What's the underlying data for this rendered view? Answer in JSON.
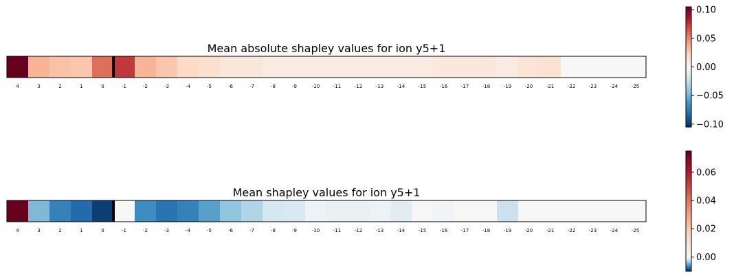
{
  "chart_data": [
    {
      "type": "heatmap",
      "title": "Mean absolute shapley values for ion y5+1",
      "colormap": "RdBu_r",
      "vlim": [
        -0.105,
        0.105
      ],
      "separator_after_index": 4,
      "x_tick_labels": [
        "4",
        "3",
        "2",
        "1",
        "0",
        "-1",
        "-2",
        "-3",
        "-4",
        "-5",
        "-6",
        "-7",
        "-8",
        "-9",
        "-10",
        "-11",
        "-12",
        "-13",
        "-14",
        "-15",
        "-16",
        "-17",
        "-18",
        "-19",
        "-20",
        "-21",
        "-22",
        "-23",
        "-24",
        "-25"
      ],
      "values": [
        0.105,
        0.036,
        0.031,
        0.029,
        0.058,
        0.075,
        0.036,
        0.029,
        0.021,
        0.018,
        0.012,
        0.012,
        0.009,
        0.009,
        0.009,
        0.009,
        0.009,
        0.009,
        0.009,
        0.009,
        0.011,
        0.011,
        0.011,
        0.009,
        0.014,
        0.016,
        0.0,
        0.0,
        0.0,
        0.0
      ],
      "colorbar": {
        "ticks": [
          "0.10",
          "0.05",
          "0.00",
          "−0.05",
          "−0.10"
        ],
        "tick_values": [
          0.1,
          0.05,
          0.0,
          -0.05,
          -0.1
        ],
        "range": [
          -0.105,
          0.105
        ]
      }
    },
    {
      "type": "heatmap",
      "title": "Mean shapley values for ion y5+1",
      "colormap": "RdBu_r",
      "vlim": [
        -0.01,
        0.075
      ],
      "separator_after_index": 4,
      "x_tick_labels": [
        "4",
        "3",
        "2",
        "1",
        "0",
        "-1",
        "-2",
        "-3",
        "-4",
        "-5",
        "-6",
        "-7",
        "-8",
        "-9",
        "-10",
        "-11",
        "-12",
        "-13",
        "-14",
        "-15",
        "-16",
        "-17",
        "-18",
        "-19",
        "-20",
        "-21",
        "-22",
        "-23",
        "-24",
        "-25"
      ],
      "values": [
        0.075,
        -0.0045,
        -0.0068,
        -0.0078,
        -0.0095,
        0.0,
        -0.0063,
        -0.0074,
        -0.0068,
        -0.0055,
        -0.004,
        -0.003,
        -0.0018,
        -0.0016,
        -0.0006,
        -0.0008,
        -0.0008,
        -0.0006,
        -0.0011,
        0.0004,
        -0.0003,
        0.0007,
        0.0003,
        -0.0022,
        0.0,
        0.0,
        0.0,
        0.0,
        0.0,
        0.0
      ],
      "colorbar": {
        "ticks": [
          "0.06",
          "0.04",
          "0.02",
          "0.00"
        ],
        "tick_values": [
          0.06,
          0.04,
          0.02,
          0.0
        ],
        "range": [
          -0.01,
          0.075
        ]
      }
    }
  ]
}
